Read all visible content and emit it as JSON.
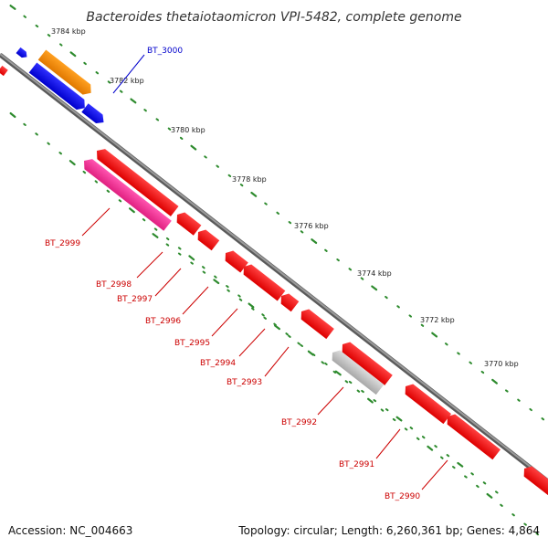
{
  "title": "Bacteroides thetaiotaomicron VPI-5482, complete genome",
  "footer": {
    "accession": "Accession: NC_004663",
    "stats": "Topology: circular; Length: 6,260,361 bp; Genes: 4,864"
  },
  "colors": {
    "background": "#ffffff",
    "backbone": "#808080",
    "tick_dot": "#2e8b2e",
    "forward_gene": "#0000ee",
    "reverse_gene": "#ee0000",
    "rna_gene": "#ff8c00",
    "pink_gene": "#ff3399",
    "grey_gene": "#b0b0b0",
    "label_blue": "#0000cc",
    "label_red": "#cc0000"
  },
  "scale_labels": [
    "3784 kbp",
    "3782 kbp",
    "3780 kbp",
    "3778 kbp",
    "3776 kbp",
    "3774 kbp",
    "3772 kbp",
    "3770 kbp"
  ],
  "gene_labels": [
    {
      "text": "BT_3000",
      "color_key": "label_blue"
    },
    {
      "text": "BT_2999",
      "color_key": "label_red"
    },
    {
      "text": "BT_2998",
      "color_key": "label_red"
    },
    {
      "text": "BT_2997",
      "color_key": "label_red"
    },
    {
      "text": "BT_2996",
      "color_key": "label_red"
    },
    {
      "text": "BT_2995",
      "color_key": "label_red"
    },
    {
      "text": "BT_2994",
      "color_key": "label_red"
    },
    {
      "text": "BT_2993",
      "color_key": "label_red"
    },
    {
      "text": "BT_2992",
      "color_key": "label_red"
    },
    {
      "text": "BT_2991",
      "color_key": "label_red"
    },
    {
      "text": "BT_2990",
      "color_key": "label_red"
    }
  ]
}
